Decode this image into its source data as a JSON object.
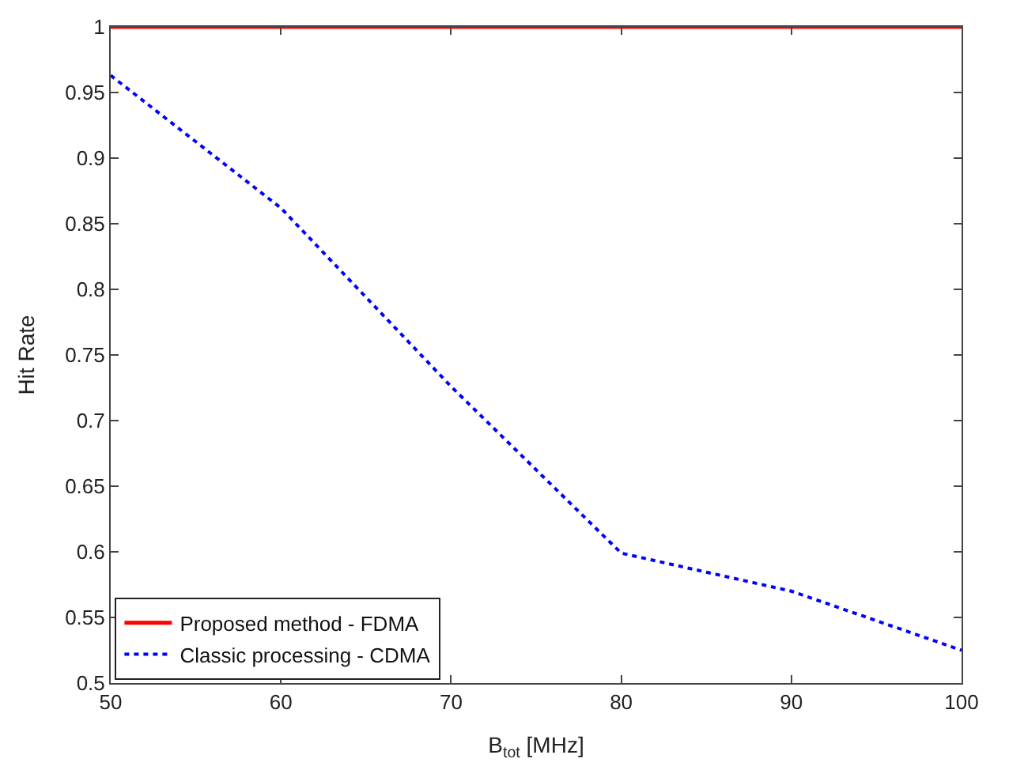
{
  "chart_data": {
    "type": "line",
    "xlabel": "B$_{tot}$ [MHz]",
    "ylabel": "Hit Rate",
    "x": [
      50,
      60,
      70,
      80,
      90,
      100
    ],
    "series": [
      {
        "name": "Proposed method - FDMA",
        "color": "#ff0000",
        "values": [
          1,
          1,
          1,
          1,
          1,
          1
        ],
        "line_style": "solid"
      },
      {
        "name": "Classic processing - CDMA",
        "color": "#0000ff",
        "values": [
          0.963,
          0.862,
          0.726,
          0.599,
          0.57,
          0.525
        ],
        "line_style": "dotted"
      }
    ],
    "xlim": [
      50,
      100
    ],
    "xticks": [
      50,
      60,
      70,
      80,
      90,
      100
    ],
    "ylim": [
      0.5,
      1
    ],
    "yticks": [
      0.5,
      0.55,
      0.6,
      0.65,
      0.7,
      0.75,
      0.8,
      0.85,
      0.9,
      0.95,
      1
    ],
    "legend": "bottom left",
    "marker": "none"
  }
}
